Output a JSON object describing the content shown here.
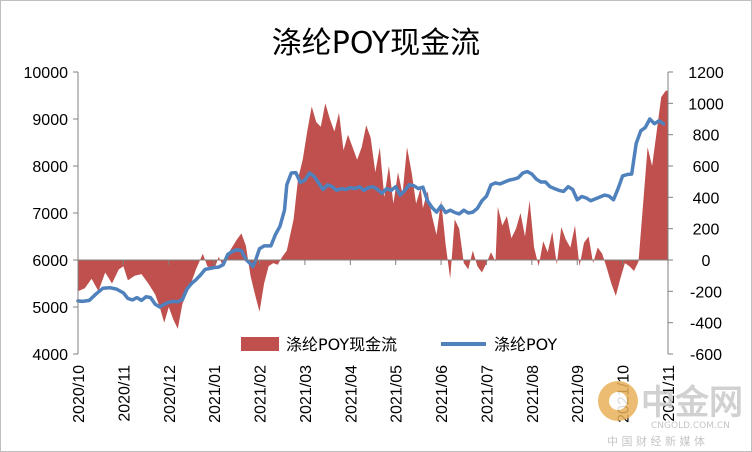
{
  "colors": {
    "area": "#c0504d",
    "line": "#4f81bd",
    "axis": "#808080",
    "watermark_logo": "#e8b15a",
    "watermark_red": "#d9534f"
  },
  "watermark": {
    "logo_text": "中金网",
    "url": "CNGOLD.COM.CN",
    "slogan": "中 国 财 经 新 媒 体"
  },
  "chart_data": {
    "type": "area",
    "title": "涤纶POY现金流",
    "legend_position": "bottom-center",
    "grid": false,
    "x_labels": [
      "2020/10",
      "2020/11",
      "2020/12",
      "2021/01",
      "2021/02",
      "2021/03",
      "2021/04",
      "2021/05",
      "2021/06",
      "2021/07",
      "2021/08",
      "2021/09",
      "2021/10",
      "2021/11"
    ],
    "x_range": [
      0,
      13
    ],
    "y_left_range": [
      4000,
      10000
    ],
    "y_left_ticks": [
      "4000",
      "5000",
      "6000",
      "7000",
      "8000",
      "9000",
      "10000"
    ],
    "y_right_range": [
      -600,
      1200
    ],
    "y_right_ticks": [
      "-600",
      "-400",
      "-200",
      "0",
      "200",
      "400",
      "600",
      "800",
      "1000",
      "1200"
    ],
    "series": [
      {
        "name": "涤纶POY现金流",
        "kind": "area",
        "axis": "right",
        "points": [
          [
            0.0,
            -200
          ],
          [
            0.15,
            -180
          ],
          [
            0.3,
            -120
          ],
          [
            0.45,
            -200
          ],
          [
            0.6,
            -80
          ],
          [
            0.75,
            -150
          ],
          [
            0.9,
            -60
          ],
          [
            1.0,
            -40
          ],
          [
            1.1,
            -130
          ],
          [
            1.25,
            -100
          ],
          [
            1.4,
            -90
          ],
          [
            1.55,
            -150
          ],
          [
            1.7,
            -220
          ],
          [
            1.8,
            -300
          ],
          [
            1.9,
            -400
          ],
          [
            2.0,
            -300
          ],
          [
            2.1,
            -380
          ],
          [
            2.2,
            -440
          ],
          [
            2.3,
            -280
          ],
          [
            2.45,
            -180
          ],
          [
            2.6,
            -60
          ],
          [
            2.75,
            40
          ],
          [
            2.85,
            -40
          ],
          [
            3.0,
            -60
          ],
          [
            3.1,
            20
          ],
          [
            3.2,
            -40
          ],
          [
            3.35,
            60
          ],
          [
            3.5,
            130
          ],
          [
            3.6,
            170
          ],
          [
            3.7,
            90
          ],
          [
            3.8,
            -100
          ],
          [
            3.9,
            -220
          ],
          [
            4.0,
            -330
          ],
          [
            4.1,
            -150
          ],
          [
            4.2,
            -40
          ],
          [
            4.3,
            -20
          ],
          [
            4.4,
            -30
          ],
          [
            4.5,
            20
          ],
          [
            4.6,
            60
          ],
          [
            4.75,
            260
          ],
          [
            4.85,
            520
          ],
          [
            4.95,
            640
          ],
          [
            5.05,
            820
          ],
          [
            5.15,
            980
          ],
          [
            5.25,
            880
          ],
          [
            5.35,
            850
          ],
          [
            5.45,
            1000
          ],
          [
            5.55,
            900
          ],
          [
            5.65,
            820
          ],
          [
            5.75,
            940
          ],
          [
            5.85,
            700
          ],
          [
            5.95,
            800
          ],
          [
            6.05,
            720
          ],
          [
            6.15,
            640
          ],
          [
            6.25,
            720
          ],
          [
            6.35,
            860
          ],
          [
            6.45,
            780
          ],
          [
            6.55,
            560
          ],
          [
            6.65,
            720
          ],
          [
            6.75,
            400
          ],
          [
            6.85,
            600
          ],
          [
            6.95,
            360
          ],
          [
            7.05,
            560
          ],
          [
            7.15,
            420
          ],
          [
            7.25,
            720
          ],
          [
            7.35,
            560
          ],
          [
            7.45,
            360
          ],
          [
            7.55,
            460
          ],
          [
            7.6,
            330
          ],
          [
            7.7,
            440
          ],
          [
            7.8,
            280
          ],
          [
            7.9,
            160
          ],
          [
            8.0,
            380
          ],
          [
            8.1,
            100
          ],
          [
            8.2,
            -120
          ],
          [
            8.3,
            260
          ],
          [
            8.4,
            200
          ],
          [
            8.5,
            -20
          ],
          [
            8.6,
            -60
          ],
          [
            8.7,
            60
          ],
          [
            8.8,
            -40
          ],
          [
            8.9,
            -80
          ],
          [
            9.0,
            -20
          ],
          [
            9.1,
            50
          ],
          [
            9.2,
            -10
          ],
          [
            9.25,
            340
          ],
          [
            9.35,
            220
          ],
          [
            9.45,
            280
          ],
          [
            9.55,
            140
          ],
          [
            9.65,
            200
          ],
          [
            9.75,
            300
          ],
          [
            9.85,
            150
          ],
          [
            9.95,
            380
          ],
          [
            10.05,
            80
          ],
          [
            10.15,
            -40
          ],
          [
            10.25,
            120
          ],
          [
            10.35,
            50
          ],
          [
            10.45,
            180
          ],
          [
            10.55,
            -30
          ],
          [
            10.65,
            210
          ],
          [
            10.75,
            130
          ],
          [
            10.85,
            80
          ],
          [
            10.95,
            220
          ],
          [
            11.05,
            -40
          ],
          [
            11.15,
            110
          ],
          [
            11.25,
            150
          ],
          [
            11.35,
            -20
          ],
          [
            11.45,
            80
          ],
          [
            11.55,
            40
          ],
          [
            11.65,
            -50
          ],
          [
            11.75,
            -150
          ],
          [
            11.85,
            -230
          ],
          [
            11.95,
            -120
          ],
          [
            12.05,
            -20
          ],
          [
            12.15,
            -40
          ],
          [
            12.25,
            -70
          ],
          [
            12.35,
            -10
          ],
          [
            12.45,
            350
          ],
          [
            12.55,
            720
          ],
          [
            12.65,
            600
          ],
          [
            12.75,
            820
          ],
          [
            12.85,
            1040
          ],
          [
            12.95,
            1080
          ],
          [
            13.0,
            1080
          ]
        ]
      },
      {
        "name": "涤纶POY",
        "kind": "line",
        "axis": "left",
        "points": [
          [
            0.0,
            5130
          ],
          [
            0.1,
            5120
          ],
          [
            0.25,
            5140
          ],
          [
            0.4,
            5280
          ],
          [
            0.55,
            5400
          ],
          [
            0.7,
            5410
          ],
          [
            0.85,
            5380
          ],
          [
            1.0,
            5300
          ],
          [
            1.1,
            5180
          ],
          [
            1.2,
            5150
          ],
          [
            1.3,
            5200
          ],
          [
            1.4,
            5140
          ],
          [
            1.5,
            5220
          ],
          [
            1.6,
            5200
          ],
          [
            1.7,
            5060
          ],
          [
            1.8,
            5000
          ],
          [
            1.9,
            5060
          ],
          [
            2.0,
            5100
          ],
          [
            2.1,
            5120
          ],
          [
            2.2,
            5110
          ],
          [
            2.3,
            5160
          ],
          [
            2.4,
            5380
          ],
          [
            2.5,
            5500
          ],
          [
            2.6,
            5580
          ],
          [
            2.7,
            5680
          ],
          [
            2.8,
            5800
          ],
          [
            2.9,
            5820
          ],
          [
            3.0,
            5840
          ],
          [
            3.1,
            5850
          ],
          [
            3.2,
            5900
          ],
          [
            3.3,
            6120
          ],
          [
            3.4,
            6180
          ],
          [
            3.5,
            6220
          ],
          [
            3.6,
            6200
          ],
          [
            3.65,
            6100
          ],
          [
            3.7,
            6010
          ],
          [
            3.8,
            5920
          ],
          [
            3.85,
            5860
          ],
          [
            3.9,
            5960
          ],
          [
            4.0,
            6240
          ],
          [
            4.1,
            6300
          ],
          [
            4.25,
            6300
          ],
          [
            4.35,
            6540
          ],
          [
            4.45,
            6720
          ],
          [
            4.55,
            7060
          ],
          [
            4.6,
            7600
          ],
          [
            4.7,
            7850
          ],
          [
            4.8,
            7860
          ],
          [
            4.9,
            7650
          ],
          [
            5.0,
            7700
          ],
          [
            5.1,
            7850
          ],
          [
            5.2,
            7780
          ],
          [
            5.3,
            7640
          ],
          [
            5.4,
            7500
          ],
          [
            5.5,
            7600
          ],
          [
            5.6,
            7560
          ],
          [
            5.7,
            7480
          ],
          [
            5.8,
            7520
          ],
          [
            5.9,
            7500
          ],
          [
            6.0,
            7540
          ],
          [
            6.1,
            7520
          ],
          [
            6.2,
            7560
          ],
          [
            6.3,
            7480
          ],
          [
            6.4,
            7540
          ],
          [
            6.5,
            7560
          ],
          [
            6.6,
            7500
          ],
          [
            6.7,
            7420
          ],
          [
            6.8,
            7520
          ],
          [
            6.9,
            7480
          ],
          [
            7.0,
            7560
          ],
          [
            7.1,
            7380
          ],
          [
            7.2,
            7480
          ],
          [
            7.3,
            7600
          ],
          [
            7.4,
            7580
          ],
          [
            7.5,
            7520
          ],
          [
            7.6,
            7550
          ],
          [
            7.7,
            7260
          ],
          [
            7.8,
            7120
          ],
          [
            7.9,
            7020
          ],
          [
            8.0,
            7150
          ],
          [
            8.1,
            7010
          ],
          [
            8.2,
            7060
          ],
          [
            8.3,
            7010
          ],
          [
            8.4,
            6980
          ],
          [
            8.5,
            7060
          ],
          [
            8.6,
            7000
          ],
          [
            8.7,
            7020
          ],
          [
            8.8,
            7100
          ],
          [
            8.9,
            7260
          ],
          [
            9.0,
            7360
          ],
          [
            9.1,
            7600
          ],
          [
            9.2,
            7640
          ],
          [
            9.3,
            7620
          ],
          [
            9.4,
            7660
          ],
          [
            9.5,
            7700
          ],
          [
            9.6,
            7720
          ],
          [
            9.7,
            7750
          ],
          [
            9.8,
            7850
          ],
          [
            9.9,
            7880
          ],
          [
            10.0,
            7830
          ],
          [
            10.1,
            7720
          ],
          [
            10.2,
            7660
          ],
          [
            10.3,
            7660
          ],
          [
            10.4,
            7560
          ],
          [
            10.5,
            7520
          ],
          [
            10.6,
            7480
          ],
          [
            10.7,
            7460
          ],
          [
            10.8,
            7560
          ],
          [
            10.9,
            7500
          ],
          [
            11.0,
            7280
          ],
          [
            11.1,
            7350
          ],
          [
            11.2,
            7320
          ],
          [
            11.3,
            7260
          ],
          [
            11.4,
            7300
          ],
          [
            11.5,
            7340
          ],
          [
            11.6,
            7380
          ],
          [
            11.7,
            7360
          ],
          [
            11.8,
            7280
          ],
          [
            11.9,
            7520
          ],
          [
            12.0,
            7790
          ],
          [
            12.1,
            7820
          ],
          [
            12.2,
            7830
          ],
          [
            12.3,
            8480
          ],
          [
            12.4,
            8750
          ],
          [
            12.5,
            8820
          ],
          [
            12.6,
            9000
          ],
          [
            12.7,
            8900
          ],
          [
            12.8,
            8960
          ],
          [
            12.9,
            8900
          ]
        ]
      }
    ]
  }
}
